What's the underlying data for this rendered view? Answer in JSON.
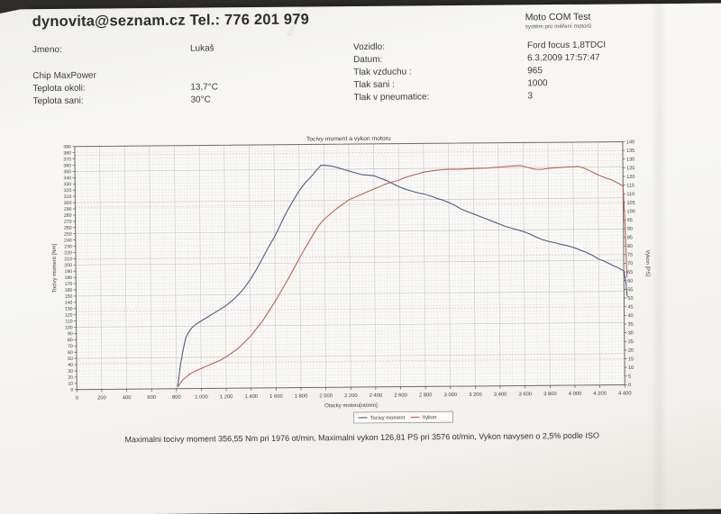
{
  "header": {
    "contact": "dynovita@seznam.cz Tel.: 776 201 979",
    "app_title": "Moto COM Test",
    "app_subtitle": "systém pro měření motorů",
    "left_fields": [
      {
        "label": "Jmeno:",
        "value": "Lukaš"
      },
      {
        "label": "Chip MaxPower",
        "value": ""
      },
      {
        "label": "Teplota okoli:",
        "value": "13,7°C"
      },
      {
        "label": "Teplota sani:",
        "value": "30°C"
      }
    ],
    "right_fields": [
      {
        "label": "Vozidlo:",
        "value": "Ford focus 1,8TDCI"
      },
      {
        "label": "Datum:",
        "value": "6.3.2009 17:57:47"
      },
      {
        "label": "Tlak vzduchu :",
        "value": "965"
      },
      {
        "label": "Tlak sani :",
        "value": "1000"
      },
      {
        "label": "Tlak v pneumatice:",
        "value": "3"
      }
    ]
  },
  "summary": "Maximalni tocivy moment 356,55 Nm pri 1976 ot/min,  Maximalni vykon 126,81 PS pri 3576 ot/min,  Vykon navysen o 2,5% podle ISO",
  "chart_data": {
    "type": "line",
    "title": "Tocivy moment a vykon motoru",
    "xlabel": "Otacky motoru[ot/min]",
    "ylabel_left": "Tocivy moment [Nm]",
    "ylabel_right": "Vykon [PS]",
    "xlim": [
      0,
      4400
    ],
    "x_tick_step": 200,
    "x_tick_labels": [
      "0",
      "200",
      "400",
      "600",
      "800",
      "1 000",
      "1 200",
      "1 400",
      "1 600",
      "1 800",
      "2 000",
      "2 200",
      "2 400",
      "2 600",
      "2 800",
      "3 000",
      "3 200",
      "3 400",
      "3 600",
      "3 800",
      "4 000",
      "4 200",
      "4 400"
    ],
    "ylim_left": [
      0,
      390
    ],
    "yleft_tick_step": 10,
    "ylim_right": [
      0,
      140
    ],
    "yright_tick_step": 5,
    "grid": true,
    "legend_position": "bottom-center",
    "colors": {
      "torque": "#4f5b88",
      "power": "#c55f55",
      "grid_minor": "#ededec",
      "grid_mid": "#e2e2e0",
      "grid_major": "#c9c9c6",
      "grid_pink": "#e2b7b4",
      "frame": "#6a6a6a",
      "tick_text": "#3d3d3d"
    },
    "max_torque": {
      "nm": 356.55,
      "rpm": 1976
    },
    "max_power": {
      "ps": 126.81,
      "rpm": 3576
    },
    "power_correction_note": "Vykon navysen o 2,5% podle ISO",
    "series": [
      {
        "name": "Tocivy moment",
        "axis": "left",
        "unit": "Nm",
        "points": [
          [
            810,
            4
          ],
          [
            820,
            18
          ],
          [
            835,
            40
          ],
          [
            850,
            56
          ],
          [
            865,
            70
          ],
          [
            880,
            82
          ],
          [
            900,
            90
          ],
          [
            930,
            98
          ],
          [
            960,
            103
          ],
          [
            1000,
            108
          ],
          [
            1050,
            114
          ],
          [
            1100,
            120
          ],
          [
            1150,
            126
          ],
          [
            1200,
            132
          ],
          [
            1250,
            140
          ],
          [
            1300,
            149
          ],
          [
            1350,
            160
          ],
          [
            1400,
            174
          ],
          [
            1450,
            190
          ],
          [
            1500,
            208
          ],
          [
            1550,
            226
          ],
          [
            1600,
            243
          ],
          [
            1650,
            263
          ],
          [
            1700,
            283
          ],
          [
            1750,
            300
          ],
          [
            1800,
            316
          ],
          [
            1850,
            329
          ],
          [
            1900,
            339
          ],
          [
            1940,
            349
          ],
          [
            1976,
            356.55
          ],
          [
            2020,
            356
          ],
          [
            2060,
            355
          ],
          [
            2100,
            353
          ],
          [
            2150,
            350
          ],
          [
            2200,
            347
          ],
          [
            2250,
            344
          ],
          [
            2300,
            341
          ],
          [
            2350,
            340
          ],
          [
            2400,
            339
          ],
          [
            2450,
            335
          ],
          [
            2500,
            331
          ],
          [
            2550,
            326
          ],
          [
            2600,
            321
          ],
          [
            2650,
            317
          ],
          [
            2700,
            314
          ],
          [
            2750,
            311
          ],
          [
            2800,
            309
          ],
          [
            2850,
            306
          ],
          [
            2900,
            302
          ],
          [
            2950,
            299
          ],
          [
            3000,
            295
          ],
          [
            3050,
            290
          ],
          [
            3100,
            284
          ],
          [
            3150,
            280
          ],
          [
            3200,
            276
          ],
          [
            3250,
            272
          ],
          [
            3300,
            268
          ],
          [
            3350,
            264
          ],
          [
            3400,
            260
          ],
          [
            3450,
            256
          ],
          [
            3500,
            253
          ],
          [
            3550,
            250
          ],
          [
            3600,
            247
          ],
          [
            3650,
            243
          ],
          [
            3700,
            238
          ],
          [
            3750,
            234
          ],
          [
            3800,
            231
          ],
          [
            3850,
            229
          ],
          [
            3900,
            226
          ],
          [
            3950,
            224
          ],
          [
            4000,
            221
          ],
          [
            4050,
            217
          ],
          [
            4100,
            213
          ],
          [
            4150,
            208
          ],
          [
            4200,
            202
          ],
          [
            4250,
            198
          ],
          [
            4300,
            193
          ],
          [
            4350,
            188
          ],
          [
            4400,
            183
          ],
          [
            4415,
            166
          ],
          [
            4425,
            142
          ]
        ]
      },
      {
        "name": "Vykon",
        "axis": "right",
        "unit": "PS",
        "points": [
          [
            810,
            1
          ],
          [
            850,
            5
          ],
          [
            900,
            8
          ],
          [
            950,
            10
          ],
          [
            1000,
            11.5
          ],
          [
            1050,
            13
          ],
          [
            1100,
            14.5
          ],
          [
            1150,
            16
          ],
          [
            1200,
            18
          ],
          [
            1250,
            20.5
          ],
          [
            1300,
            23
          ],
          [
            1350,
            26.5
          ],
          [
            1400,
            30
          ],
          [
            1450,
            34.5
          ],
          [
            1500,
            39
          ],
          [
            1550,
            44.5
          ],
          [
            1600,
            50
          ],
          [
            1650,
            56
          ],
          [
            1700,
            62
          ],
          [
            1750,
            68.5
          ],
          [
            1800,
            75
          ],
          [
            1850,
            81
          ],
          [
            1900,
            87
          ],
          [
            1950,
            93
          ],
          [
            2000,
            97
          ],
          [
            2050,
            100
          ],
          [
            2100,
            103
          ],
          [
            2150,
            105.5
          ],
          [
            2200,
            108
          ],
          [
            2250,
            109.5
          ],
          [
            2300,
            111
          ],
          [
            2350,
            112.5
          ],
          [
            2400,
            114
          ],
          [
            2450,
            115.5
          ],
          [
            2500,
            117
          ],
          [
            2550,
            118
          ],
          [
            2600,
            119
          ],
          [
            2650,
            120.5
          ],
          [
            2700,
            121.5
          ],
          [
            2750,
            122.5
          ],
          [
            2800,
            123.5
          ],
          [
            2850,
            124
          ],
          [
            2900,
            124.5
          ],
          [
            2950,
            124.8
          ],
          [
            3000,
            125
          ],
          [
            3100,
            125
          ],
          [
            3200,
            125.3
          ],
          [
            3300,
            125.5
          ],
          [
            3400,
            126
          ],
          [
            3500,
            126.5
          ],
          [
            3576,
            126.81
          ],
          [
            3620,
            126
          ],
          [
            3660,
            125.2
          ],
          [
            3700,
            124.6
          ],
          [
            3750,
            124.5
          ],
          [
            3800,
            125
          ],
          [
            3850,
            125.3
          ],
          [
            3900,
            125.5
          ],
          [
            3950,
            125.7
          ],
          [
            4000,
            125.8
          ],
          [
            4040,
            126
          ],
          [
            4080,
            125.2
          ],
          [
            4120,
            124
          ],
          [
            4160,
            122.5
          ],
          [
            4200,
            121
          ],
          [
            4250,
            119.5
          ],
          [
            4300,
            118.3
          ],
          [
            4350,
            116.5
          ],
          [
            4400,
            114.5
          ],
          [
            4412,
            95
          ],
          [
            4425,
            62
          ]
        ]
      }
    ]
  }
}
